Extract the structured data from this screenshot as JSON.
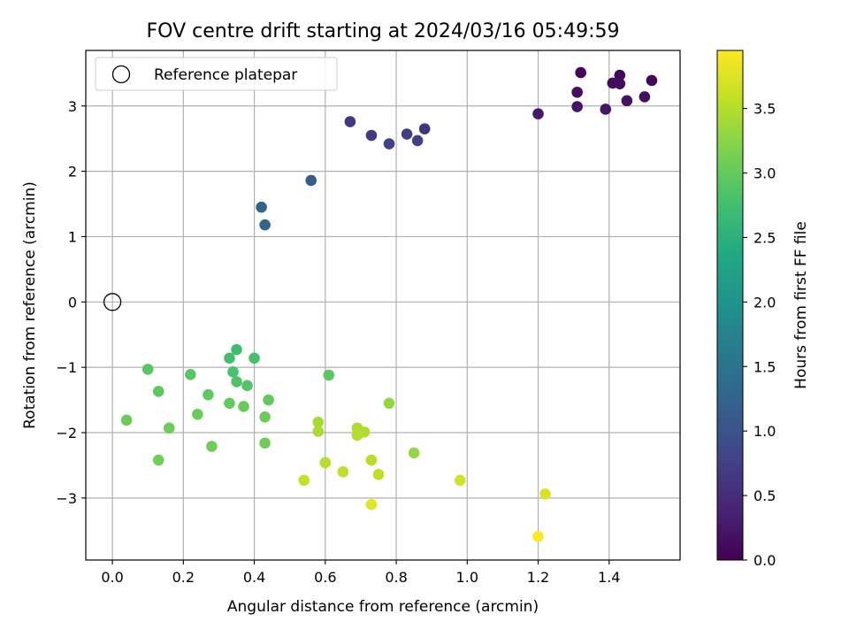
{
  "chart_data": {
    "type": "scatter",
    "title": "FOV centre drift starting at 2024/03/16 05:49:59",
    "xlabel": "Angular distance from reference (arcmin)",
    "ylabel": "Rotation from reference (arcmin)",
    "xlim": [
      -0.075,
      1.6
    ],
    "ylim": [
      -3.95,
      3.85
    ],
    "xticks": [
      0.0,
      0.2,
      0.4,
      0.6,
      0.8,
      1.0,
      1.2,
      1.4
    ],
    "xtick_labels": [
      "0.0",
      "0.2",
      "0.4",
      "0.6",
      "0.8",
      "1.0",
      "1.2",
      "1.4"
    ],
    "yticks": [
      -3,
      -2,
      -1,
      0,
      1,
      2,
      3
    ],
    "ytick_labels": [
      "−3",
      "−2",
      "−1",
      "0",
      "1",
      "2",
      "3"
    ],
    "grid": true,
    "legend": {
      "position": "top-left",
      "entries": [
        "Reference platepar"
      ]
    },
    "reference_point": {
      "x": 0.0,
      "y": 0.0
    },
    "colorbar": {
      "label": "Hours from first FF file",
      "colormap": "viridis",
      "range": [
        0.0,
        3.95
      ],
      "ticks": [
        0.0,
        0.5,
        1.0,
        1.5,
        2.0,
        2.5,
        3.0,
        3.5
      ],
      "tick_labels": [
        "0.0",
        "0.5",
        "1.0",
        "1.5",
        "2.0",
        "2.5",
        "3.0",
        "3.5"
      ]
    },
    "points": [
      {
        "x": 1.32,
        "y": 3.51,
        "c": 0.05
      },
      {
        "x": 1.43,
        "y": 3.47,
        "c": 0.07
      },
      {
        "x": 1.52,
        "y": 3.39,
        "c": 0.09
      },
      {
        "x": 1.41,
        "y": 3.35,
        "c": 0.11
      },
      {
        "x": 1.43,
        "y": 3.34,
        "c": 0.13
      },
      {
        "x": 1.31,
        "y": 3.21,
        "c": 0.15
      },
      {
        "x": 1.5,
        "y": 3.14,
        "c": 0.17
      },
      {
        "x": 1.45,
        "y": 3.08,
        "c": 0.19
      },
      {
        "x": 1.31,
        "y": 2.99,
        "c": 0.21
      },
      {
        "x": 1.39,
        "y": 2.95,
        "c": 0.23
      },
      {
        "x": 1.2,
        "y": 2.88,
        "c": 0.25
      },
      {
        "x": 0.88,
        "y": 2.65,
        "c": 0.58
      },
      {
        "x": 0.67,
        "y": 2.76,
        "c": 0.62
      },
      {
        "x": 0.73,
        "y": 2.55,
        "c": 0.66
      },
      {
        "x": 0.83,
        "y": 2.57,
        "c": 0.7
      },
      {
        "x": 0.86,
        "y": 2.47,
        "c": 0.74
      },
      {
        "x": 0.78,
        "y": 2.42,
        "c": 0.78
      },
      {
        "x": 0.56,
        "y": 1.86,
        "c": 1.15
      },
      {
        "x": 0.42,
        "y": 1.45,
        "c": 1.25
      },
      {
        "x": 0.43,
        "y": 1.18,
        "c": 1.3
      },
      {
        "x": 0.35,
        "y": -0.73,
        "c": 2.72
      },
      {
        "x": 0.33,
        "y": -0.86,
        "c": 2.75
      },
      {
        "x": 0.4,
        "y": -0.86,
        "c": 2.78
      },
      {
        "x": 0.34,
        "y": -1.07,
        "c": 2.8
      },
      {
        "x": 0.35,
        "y": -1.22,
        "c": 2.85
      },
      {
        "x": 0.38,
        "y": -1.28,
        "c": 2.88
      },
      {
        "x": 0.1,
        "y": -1.03,
        "c": 2.92
      },
      {
        "x": 0.22,
        "y": -1.11,
        "c": 2.92
      },
      {
        "x": 0.61,
        "y": -1.12,
        "c": 2.94
      },
      {
        "x": 0.13,
        "y": -1.37,
        "c": 2.95
      },
      {
        "x": 0.27,
        "y": -1.42,
        "c": 2.97
      },
      {
        "x": 0.44,
        "y": -1.5,
        "c": 2.98
      },
      {
        "x": 0.33,
        "y": -1.55,
        "c": 3.0
      },
      {
        "x": 0.37,
        "y": -1.6,
        "c": 3.02
      },
      {
        "x": 0.24,
        "y": -1.72,
        "c": 3.03
      },
      {
        "x": 0.43,
        "y": -1.76,
        "c": 3.05
      },
      {
        "x": 0.04,
        "y": -1.81,
        "c": 3.06
      },
      {
        "x": 0.16,
        "y": -1.93,
        "c": 3.07
      },
      {
        "x": 0.43,
        "y": -2.16,
        "c": 3.08
      },
      {
        "x": 0.28,
        "y": -2.21,
        "c": 3.08
      },
      {
        "x": 0.13,
        "y": -2.42,
        "c": 3.1
      },
      {
        "x": 0.78,
        "y": -1.55,
        "c": 3.3
      },
      {
        "x": 0.85,
        "y": -2.31,
        "c": 3.32
      },
      {
        "x": 0.58,
        "y": -1.84,
        "c": 3.42
      },
      {
        "x": 0.58,
        "y": -1.98,
        "c": 3.44
      },
      {
        "x": 0.69,
        "y": -1.93,
        "c": 3.46
      },
      {
        "x": 0.71,
        "y": -1.99,
        "c": 3.48
      },
      {
        "x": 0.69,
        "y": -2.04,
        "c": 3.5
      },
      {
        "x": 0.6,
        "y": -2.46,
        "c": 3.5
      },
      {
        "x": 0.73,
        "y": -2.42,
        "c": 3.52
      },
      {
        "x": 0.65,
        "y": -2.6,
        "c": 3.55
      },
      {
        "x": 0.75,
        "y": -2.64,
        "c": 3.57
      },
      {
        "x": 0.54,
        "y": -2.73,
        "c": 3.6
      },
      {
        "x": 0.98,
        "y": -2.73,
        "c": 3.68
      },
      {
        "x": 1.22,
        "y": -2.94,
        "c": 3.72
      },
      {
        "x": 0.73,
        "y": -3.1,
        "c": 3.78
      },
      {
        "x": 1.2,
        "y": -3.59,
        "c": 3.93
      }
    ]
  }
}
